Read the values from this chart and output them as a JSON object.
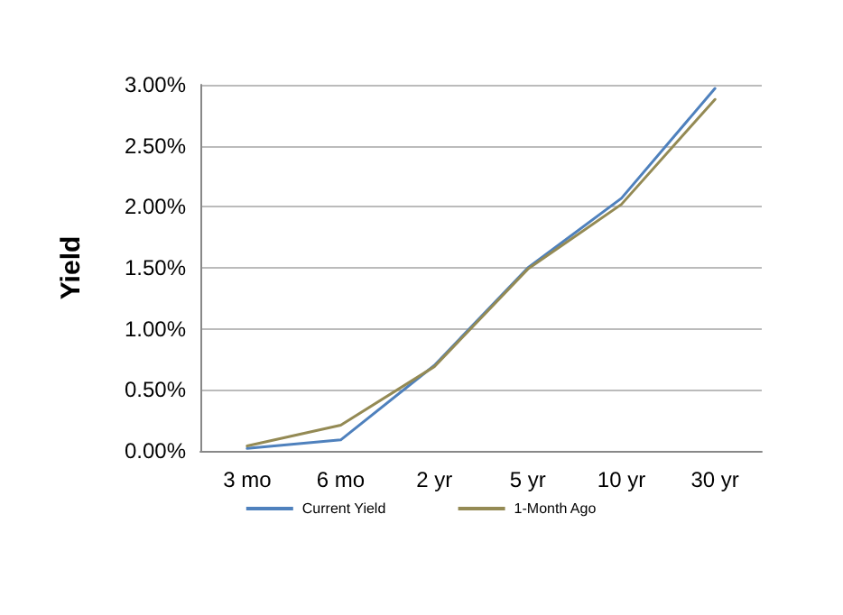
{
  "chart_data": {
    "type": "line",
    "ylabel": "Yield",
    "categories": [
      "3 mo",
      "6 mo",
      "2 yr",
      "5 yr",
      "10 yr",
      "30 yr"
    ],
    "series": [
      {
        "name": "Current Yield",
        "color": "#4f81bd",
        "values": [
          0.02,
          0.09,
          0.7,
          1.5,
          2.07,
          2.97
        ]
      },
      {
        "name": "1-Month Ago",
        "color": "#948a54",
        "values": [
          0.04,
          0.21,
          0.69,
          1.49,
          2.02,
          2.88
        ]
      }
    ],
    "ylim": [
      0,
      3
    ],
    "yticks": [
      {
        "value": 0,
        "label": "0.00%"
      },
      {
        "value": 0.5,
        "label": "0.50%"
      },
      {
        "value": 1,
        "label": "1.00%"
      },
      {
        "value": 1.5,
        "label": "1.50%"
      },
      {
        "value": 2,
        "label": "2.00%"
      },
      {
        "value": 2.5,
        "label": "2.50%"
      },
      {
        "value": 3,
        "label": "3.00%"
      }
    ],
    "grid": "y",
    "legend": "bottom",
    "marker": "none",
    "line_style": "solid"
  }
}
